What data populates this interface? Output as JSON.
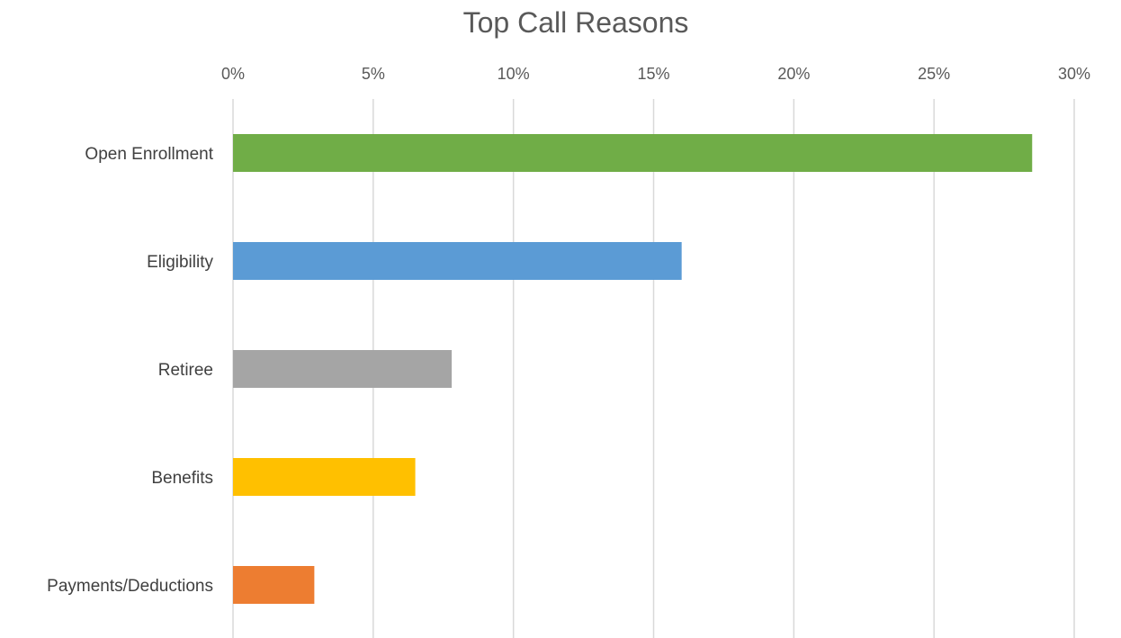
{
  "chart_data": {
    "type": "bar",
    "orientation": "horizontal",
    "title": "Top Call Reasons",
    "xlabel": "",
    "ylabel": "",
    "xlim": [
      0,
      30
    ],
    "x_ticks": [
      0,
      5,
      10,
      15,
      20,
      25,
      30
    ],
    "x_tick_labels": [
      "0%",
      "5%",
      "10%",
      "15%",
      "20%",
      "25%",
      "30%"
    ],
    "x_axis_position": "top",
    "grid": true,
    "legend": "none",
    "categories": [
      "Open Enrollment",
      "Eligibility",
      "Retiree",
      "Benefits",
      "Payments/Deductions"
    ],
    "values": [
      28.5,
      16.0,
      7.8,
      6.5,
      2.9
    ],
    "colors": [
      "#70AD47",
      "#5B9BD5",
      "#A5A5A5",
      "#FFC000",
      "#ED7D31"
    ]
  }
}
